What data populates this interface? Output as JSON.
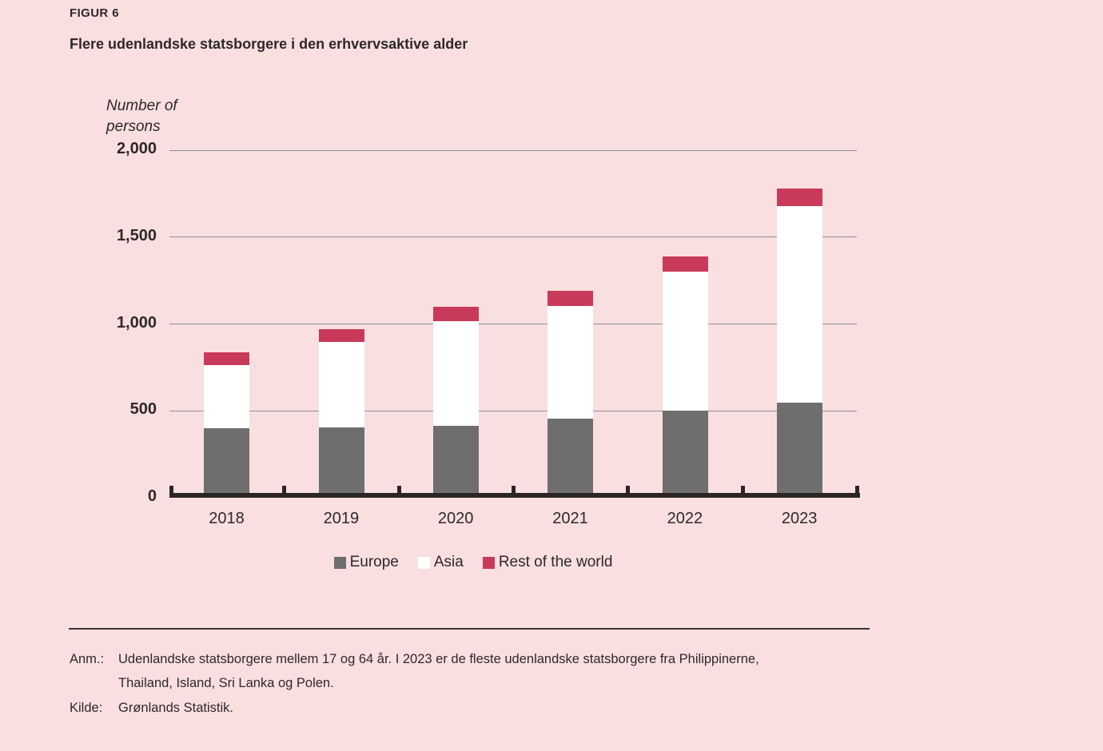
{
  "figure": {
    "label": "FIGUR 6",
    "title": "Flere udenlandske statsborgere i den erhvervsaktive alder"
  },
  "chart_data": {
    "type": "bar",
    "stacked": true,
    "title": "Flere udenlandske statsborgere i den erhvervsaktive alder",
    "xlabel": "",
    "ylabel": "Number of persons",
    "ylabel_display": [
      "Number of",
      "persons"
    ],
    "categories": [
      "2018",
      "2019",
      "2020",
      "2021",
      "2022",
      "2023"
    ],
    "series": [
      {
        "name": "Europe",
        "color": "#6e6e6e",
        "values": [
          400,
          405,
          415,
          455,
          500,
          545
        ]
      },
      {
        "name": "Asia",
        "color": "#ffffff",
        "values": [
          365,
          490,
          600,
          650,
          800,
          1135
        ]
      },
      {
        "name": "Rest of the world",
        "color": "#c93a5a",
        "values": [
          70,
          75,
          85,
          85,
          90,
          100
        ]
      }
    ],
    "totals": [
      835,
      970,
      1100,
      1190,
      1390,
      1780
    ],
    "ylim": [
      0,
      2000
    ],
    "yticks": [
      0,
      500,
      1000,
      1500,
      2000
    ],
    "ytick_labels": [
      "0",
      "500",
      "1,000",
      "1,500",
      "2,000"
    ],
    "grid": true,
    "legend_position": "bottom"
  },
  "notes": {
    "anm_label": "Anm.:",
    "anm_text": "Udenlandske statsborgere mellem 17 og 64 år. I 2023 er de fleste udenlandske statsborgere fra Philippinerne, Thailand, Island, Sri Lanka og Polen.",
    "kilde_label": "Kilde:",
    "kilde_text": "Grønlands Statistik."
  },
  "colors": {
    "background": "#f9dfe0",
    "europe": "#6e6e6e",
    "asia": "#ffffff",
    "rest_of_world": "#c93a5a",
    "axis": "#2b2526",
    "gridline": "#8f8f8f",
    "text": "#2e282a"
  }
}
